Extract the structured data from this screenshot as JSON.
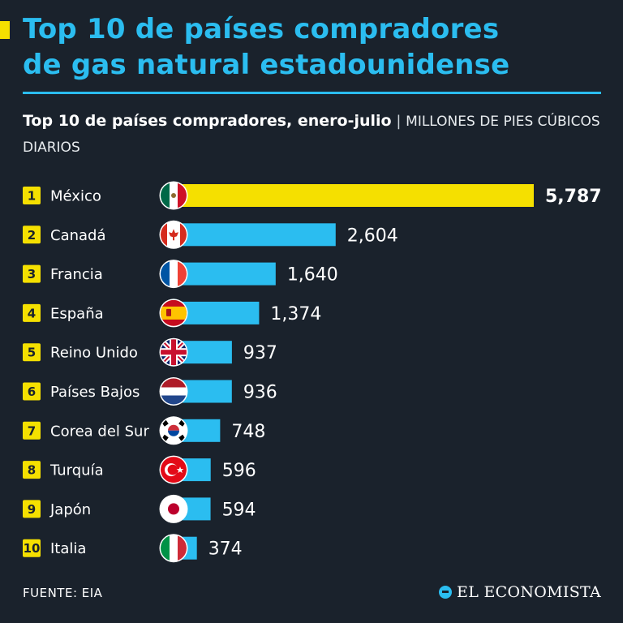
{
  "header": {
    "title_line1": "Top 10 de países compradores",
    "title_line2": "de gas natural estadounidense"
  },
  "subtitle": {
    "main": "Top 10 de países compradores, enero-julio",
    "separator": "|",
    "unit": "MILLONES DE PIES CÚBICOS DIARIOS"
  },
  "chart_data": {
    "type": "bar",
    "orientation": "horizontal",
    "title": "Top 10 de países compradores, enero-julio",
    "unit": "Millones de pies cúbicos diarios",
    "categories": [
      "México",
      "Canadá",
      "Francia",
      "España",
      "Reino Unido",
      "Países Bajos",
      "Corea del Sur",
      "Turquía",
      "Japón",
      "Italia"
    ],
    "ranks": [
      "1",
      "2",
      "3",
      "4",
      "5",
      "6",
      "7",
      "8",
      "9",
      "10"
    ],
    "values": [
      5787,
      2604,
      1640,
      1374,
      937,
      936,
      748,
      596,
      594,
      374
    ],
    "value_labels": [
      "5,787",
      "2,604",
      "1,640",
      "1,374",
      "937",
      "936",
      "748",
      "596",
      "594",
      "374"
    ],
    "flags": [
      "flag-mexico",
      "flag-canada",
      "flag-france",
      "flag-spain",
      "flag-uk",
      "flag-netherlands",
      "flag-south-korea",
      "flag-turkey",
      "flag-japan",
      "flag-italy"
    ],
    "xlim": [
      0,
      5787
    ],
    "highlight_color": "#f5e000",
    "bar_color": "#2bbdf0"
  },
  "footer": {
    "source": "FUENTE: EIA",
    "brand": "EL ECONOMISTA"
  }
}
